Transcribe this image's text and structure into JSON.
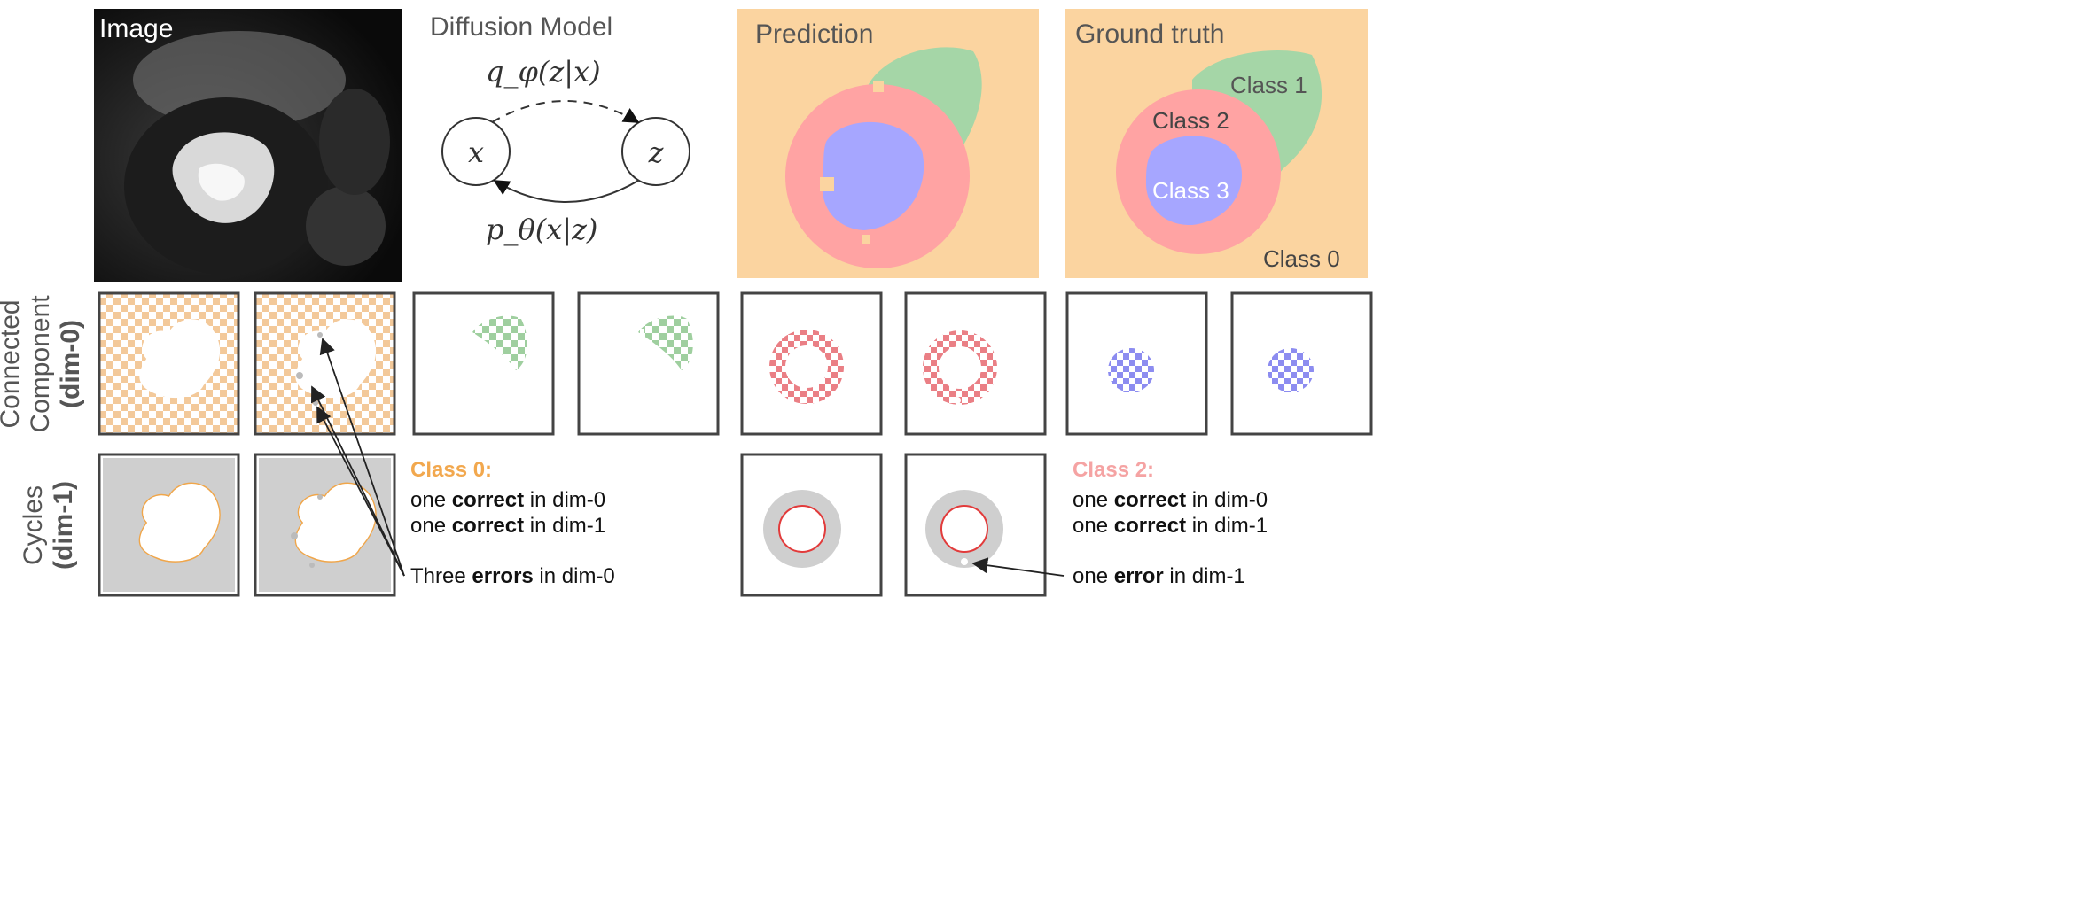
{
  "top": {
    "image_label": "Image",
    "diffusion_title": "Diffusion Model",
    "node_x": "x",
    "node_z": "z",
    "q_label": "q_φ(z|x)",
    "p_label": "p_θ(x|z)",
    "prediction_title": "Prediction",
    "ground_truth_title": "Ground truth",
    "gt_class_labels": [
      "Class 1",
      "Class 2",
      "Class 3",
      "Class 0"
    ]
  },
  "rows": {
    "dim0_label_line1": "Connected",
    "dim0_label_line2": "Component",
    "dim0_label_line3": "(dim-0)",
    "dim1_label_line1": "Cycles",
    "dim1_label_line2": "(dim-1)"
  },
  "notes": {
    "class0": {
      "title": "Class 0:",
      "line1_pre": "one ",
      "line1_bold": "correct",
      "line1_post": " in dim-0",
      "line2_pre": "one ",
      "line2_bold": "correct",
      "line2_post": " in dim-1",
      "errors_pre": "Three ",
      "errors_bold": "errors",
      "errors_post": " in dim-0"
    },
    "class2": {
      "title": "Class 2:",
      "line1_pre": "one ",
      "line1_bold": "correct",
      "line1_post": " in dim-0",
      "line2_pre": "one ",
      "line2_bold": "correct",
      "line2_post": " in dim-1",
      "error_pre": "one ",
      "error_bold": "error",
      "error_post": " in dim-1"
    }
  },
  "colors": {
    "class0": "#fbd4a0",
    "class1": "#a5d6a7",
    "class2": "#ffa3a3",
    "class3": "#a6a6ff",
    "class0_title": "#f2a84e",
    "class2_title": "#f5a3a3",
    "cycle_gray": "#cfcfcf",
    "cycle_orange": "#f0a64a",
    "cycle_red": "#e23b3b"
  }
}
